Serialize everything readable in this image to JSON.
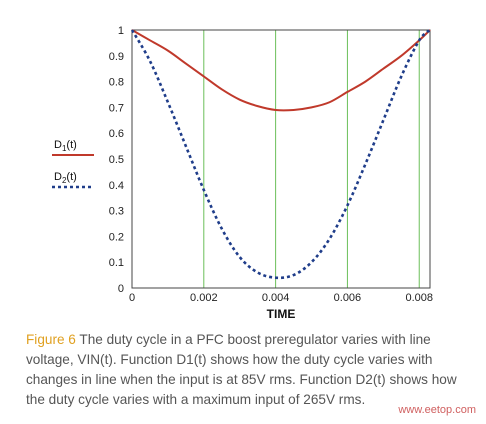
{
  "chart_data": {
    "type": "line",
    "xlabel": "TIME",
    "ylabel": "",
    "xlim": [
      0,
      0.0083
    ],
    "ylim": [
      0,
      1
    ],
    "x_ticks": [
      "0",
      "0.002",
      "0.004",
      "0.006",
      "0.008"
    ],
    "y_ticks": [
      "0",
      "0.1",
      "0.2",
      "0.3",
      "0.4",
      "0.5",
      "0.6",
      "0.7",
      "0.8",
      "0.9",
      "1"
    ],
    "grid": "vertical lines, green",
    "legend_position": "left",
    "series": [
      {
        "name": "D1(t)",
        "legend_main": "D",
        "legend_sub": "1",
        "legend_tail": "(t)",
        "color": "#c0392b",
        "style": "solid",
        "x": [
          0,
          0.0005,
          0.001,
          0.0015,
          0.002,
          0.0025,
          0.003,
          0.0035,
          0.004,
          0.0045,
          0.005,
          0.0055,
          0.006,
          0.0065,
          0.007,
          0.0075,
          0.008,
          0.0083
        ],
        "values": [
          1.0,
          0.96,
          0.92,
          0.87,
          0.82,
          0.77,
          0.73,
          0.705,
          0.69,
          0.69,
          0.7,
          0.72,
          0.76,
          0.8,
          0.85,
          0.9,
          0.96,
          1.0
        ]
      },
      {
        "name": "D2(t)",
        "legend_main": "D",
        "legend_sub": "2",
        "legend_tail": "(t)",
        "color": "#1f3d8a",
        "style": "dotted",
        "x": [
          0,
          0.0005,
          0.001,
          0.0015,
          0.002,
          0.0025,
          0.003,
          0.0035,
          0.004,
          0.0045,
          0.005,
          0.0055,
          0.006,
          0.0065,
          0.007,
          0.0075,
          0.008,
          0.0083
        ],
        "values": [
          1.0,
          0.88,
          0.72,
          0.55,
          0.38,
          0.23,
          0.12,
          0.06,
          0.04,
          0.05,
          0.1,
          0.19,
          0.32,
          0.48,
          0.65,
          0.82,
          0.96,
          1.0
        ]
      }
    ]
  },
  "caption": {
    "figure_label": "Figure 6",
    "text": " The duty cycle in a PFC boost preregulator varies with line voltage, VIN(t). Function D1(t) shows how the duty cycle varies with changes in line when the input is at 85V rms. Function D2(t) shows how the duty cycle varies with a maximum input of 265V rms."
  },
  "watermark": "www.eetop.com"
}
